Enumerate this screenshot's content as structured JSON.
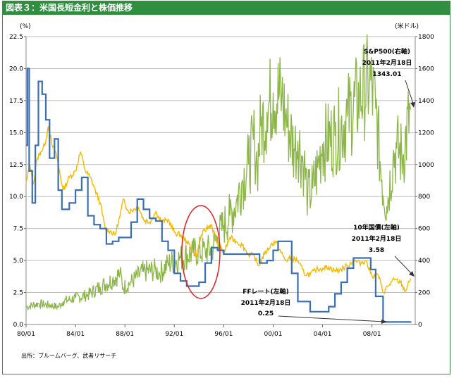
{
  "header": {
    "title": "図表３：米国長短金利と株価推移"
  },
  "source_note": "出所：ブルームバーグ、武者リサーチ",
  "chart_data": {
    "type": "line",
    "left_axis": {
      "unit": "(%)",
      "ticks": [
        "22.5",
        "20.0",
        "17.5",
        "15.0",
        "12.5",
        "10.0",
        "7.5",
        "5.0",
        "2.5",
        "0.0"
      ],
      "ylim": [
        0,
        22.5
      ]
    },
    "right_axis": {
      "unit": "(米ドル)",
      "ticks": [
        "1800",
        "1600",
        "1400",
        "1200",
        "1000",
        "800",
        "600",
        "400",
        "200",
        "0"
      ],
      "ylim": [
        0,
        1800
      ]
    },
    "x_ticks": [
      "80/01",
      "84/01",
      "88/01",
      "92/01",
      "96/01",
      "00/01",
      "04/01",
      "08/01"
    ],
    "grid": true,
    "colors": {
      "ff": "#3a6fb5",
      "t10": "#f5b800",
      "sp": "#8db64a",
      "circle": "#e02020"
    },
    "series": [
      {
        "name": "FFレート（左軸）",
        "axis": "left",
        "x": [
          1980.0,
          1980.1,
          1980.25,
          1980.5,
          1980.75,
          1981.0,
          1981.3,
          1981.6,
          1981.9,
          1982.3,
          1982.6,
          1982.9,
          1983.5,
          1984.0,
          1984.5,
          1985.0,
          1985.5,
          1986.0,
          1986.5,
          1987.0,
          1987.5,
          1988.0,
          1988.5,
          1989.0,
          1989.5,
          1990.0,
          1990.5,
          1991.0,
          1991.5,
          1992.0,
          1992.5,
          1993.0,
          1993.5,
          1994.0,
          1994.5,
          1995.0,
          1995.5,
          1996.0,
          1997.0,
          1998.0,
          1998.9,
          1999.5,
          2000.0,
          2000.4,
          2000.9,
          2001.5,
          2002.0,
          2003.0,
          2004.0,
          2004.5,
          2005.0,
          2005.5,
          2006.0,
          2006.5,
          2007.5,
          2007.9,
          2008.3,
          2008.9,
          2009.5,
          2010.5,
          2011.13
        ],
        "y": [
          14.0,
          20.0,
          12.0,
          9.5,
          14.0,
          19.0,
          18.0,
          16.0,
          13.0,
          14.5,
          10.5,
          9.0,
          9.5,
          10.5,
          11.5,
          8.5,
          7.8,
          7.5,
          6.3,
          6.5,
          6.8,
          6.8,
          8.0,
          9.8,
          9.0,
          8.3,
          8.1,
          6.5,
          5.8,
          4.0,
          3.4,
          3.0,
          3.0,
          3.3,
          4.8,
          6.0,
          5.8,
          5.5,
          5.5,
          5.5,
          4.8,
          5.0,
          5.8,
          6.5,
          6.5,
          4.0,
          1.8,
          1.0,
          1.0,
          1.4,
          2.4,
          3.3,
          4.4,
          5.2,
          5.2,
          4.3,
          2.2,
          0.2,
          0.2,
          0.2,
          0.25
        ]
      },
      {
        "name": "10年国債（左軸）",
        "axis": "left",
        "x": [
          1980.0,
          1980.3,
          1980.6,
          1980.9,
          1981.2,
          1981.5,
          1981.8,
          1982.1,
          1982.4,
          1982.7,
          1983.0,
          1983.5,
          1984.0,
          1984.4,
          1984.8,
          1985.2,
          1985.6,
          1986.0,
          1986.4,
          1986.8,
          1987.2,
          1987.6,
          1987.9,
          1988.3,
          1988.7,
          1989.1,
          1989.5,
          1990.0,
          1990.5,
          1991.0,
          1991.5,
          1992.0,
          1992.5,
          1993.0,
          1993.5,
          1993.8,
          1994.2,
          1994.6,
          1995.0,
          1995.5,
          1996.0,
          1996.5,
          1997.0,
          1997.5,
          1998.0,
          1998.5,
          1998.8,
          1999.3,
          1999.8,
          2000.2,
          2000.6,
          2001.0,
          2001.5,
          2002.0,
          2002.5,
          2003.0,
          2003.5,
          2004.0,
          2004.5,
          2005.0,
          2005.5,
          2006.0,
          2006.5,
          2007.0,
          2007.5,
          2008.0,
          2008.5,
          2008.9,
          2009.3,
          2009.8,
          2010.3,
          2010.7,
          2011.13
        ],
        "y": [
          11.0,
          12.5,
          11.0,
          13.0,
          13.5,
          14.0,
          15.5,
          14.0,
          13.5,
          12.0,
          10.5,
          11.5,
          12.0,
          13.5,
          12.0,
          11.5,
          10.5,
          9.5,
          7.5,
          7.3,
          7.0,
          8.5,
          9.8,
          8.8,
          9.0,
          9.2,
          8.2,
          8.0,
          8.8,
          8.0,
          8.2,
          7.2,
          7.0,
          6.5,
          5.8,
          5.3,
          7.0,
          7.5,
          7.8,
          6.3,
          5.6,
          6.8,
          6.5,
          6.2,
          5.5,
          5.3,
          4.6,
          5.5,
          6.2,
          6.5,
          5.7,
          5.0,
          5.2,
          5.0,
          4.0,
          3.9,
          4.3,
          4.4,
          4.5,
          4.2,
          4.3,
          4.6,
          5.0,
          4.8,
          5.0,
          3.8,
          3.9,
          2.5,
          3.0,
          3.5,
          3.3,
          2.6,
          3.58
        ]
      },
      {
        "name": "S&P500（右軸）",
        "axis": "right",
        "x": [
          1980.0,
          1981.0,
          1982.0,
          1982.6,
          1983.0,
          1984.0,
          1985.0,
          1986.0,
          1987.0,
          1987.6,
          1987.85,
          1988.5,
          1989.5,
          1990.5,
          1990.8,
          1991.5,
          1992.5,
          1993.5,
          1994.5,
          1995.0,
          1995.5,
          1996.0,
          1996.5,
          1997.0,
          1997.5,
          1998.0,
          1998.5,
          1998.7,
          1999.0,
          1999.5,
          2000.0,
          2000.7,
          2001.0,
          2001.7,
          2002.0,
          2002.5,
          2002.8,
          2003.2,
          2003.6,
          2004.0,
          2005.0,
          2006.0,
          2007.0,
          2007.8,
          2008.3,
          2008.8,
          2009.2,
          2009.7,
          2010.0,
          2010.5,
          2011.13
        ],
        "y": [
          110,
          130,
          120,
          110,
          145,
          165,
          185,
          235,
          280,
          320,
          230,
          265,
          330,
          340,
          320,
          380,
          415,
          450,
          460,
          470,
          550,
          620,
          680,
          760,
          900,
          1000,
          1150,
          990,
          1240,
          1330,
          1450,
          1420,
          1300,
          1100,
          1150,
          1000,
          800,
          850,
          980,
          1130,
          1180,
          1300,
          1420,
          1520,
          1350,
          900,
          740,
          1040,
          1100,
          1050,
          1343.01
        ]
      }
    ],
    "annotations": [
      {
        "text": "S&P500(右軸)",
        "lines": [
          "S&P500(右軸)",
          "2011年2月18日",
          "1343.01"
        ]
      },
      {
        "text": "10年国債(左軸)",
        "lines": [
          "10年国債(左軸)",
          "2011年2月18日",
          "3.58"
        ]
      },
      {
        "text": "FFレート(左軸)",
        "lines": [
          "FFレート(左軸)",
          "2011年2月18日",
          "0.25"
        ]
      }
    ]
  }
}
